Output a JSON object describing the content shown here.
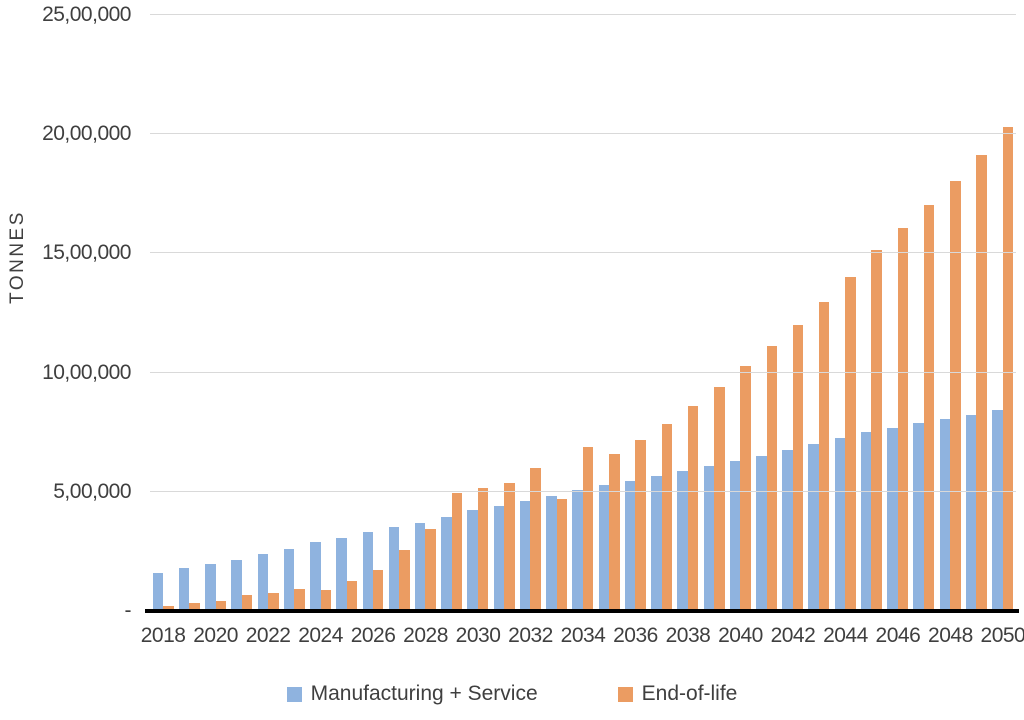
{
  "chart_data": {
    "type": "bar",
    "title": "",
    "xlabel": "",
    "ylabel": "TONNES",
    "ylim": [
      0,
      2500000
    ],
    "ytick_step": 500000,
    "ytick_labels": [
      "-",
      "5,00,000",
      "10,00,000",
      "15,00,000",
      "20,00,000",
      "25,00,000"
    ],
    "grid": true,
    "legend_position": "bottom",
    "categories": [
      2018,
      2019,
      2020,
      2021,
      2022,
      2023,
      2024,
      2025,
      2026,
      2027,
      2028,
      2029,
      2030,
      2031,
      2032,
      2033,
      2034,
      2035,
      2036,
      2037,
      2038,
      2039,
      2040,
      2041,
      2042,
      2043,
      2044,
      2045,
      2046,
      2047,
      2048,
      2049,
      2050
    ],
    "xtick_labels": [
      "2018",
      "2020",
      "2022",
      "2024",
      "2026",
      "2028",
      "2030",
      "2032",
      "2034",
      "2036",
      "2038",
      "2040",
      "2042",
      "2044",
      "2046",
      "2048",
      "2050"
    ],
    "series": [
      {
        "name": "Manufacturing + Service",
        "color": "#8fb3df",
        "values": [
          160000,
          181000,
          196000,
          216000,
          238000,
          261000,
          289000,
          306000,
          332000,
          352000,
          368000,
          395000,
          423000,
          441000,
          462000,
          484000,
          507000,
          528000,
          546000,
          566000,
          589000,
          609000,
          630000,
          650000,
          674000,
          700000,
          726000,
          750000,
          768000,
          789000,
          804000,
          824000,
          845000
        ]
      },
      {
        "name": "End-of-life",
        "color": "#eb9c62",
        "values": [
          20000,
          34000,
          44000,
          69000,
          77000,
          93000,
          90000,
          128000,
          170000,
          258000,
          344000,
          495000,
          517000,
          538000,
          600000,
          470000,
          687000,
          657000,
          719000,
          785000,
          859000,
          940000,
          1029000,
          1111000,
          1200000,
          1297000,
          1403000,
          1515000,
          1606000,
          1701000,
          1805000,
          1914000,
          2031000
        ]
      }
    ]
  }
}
